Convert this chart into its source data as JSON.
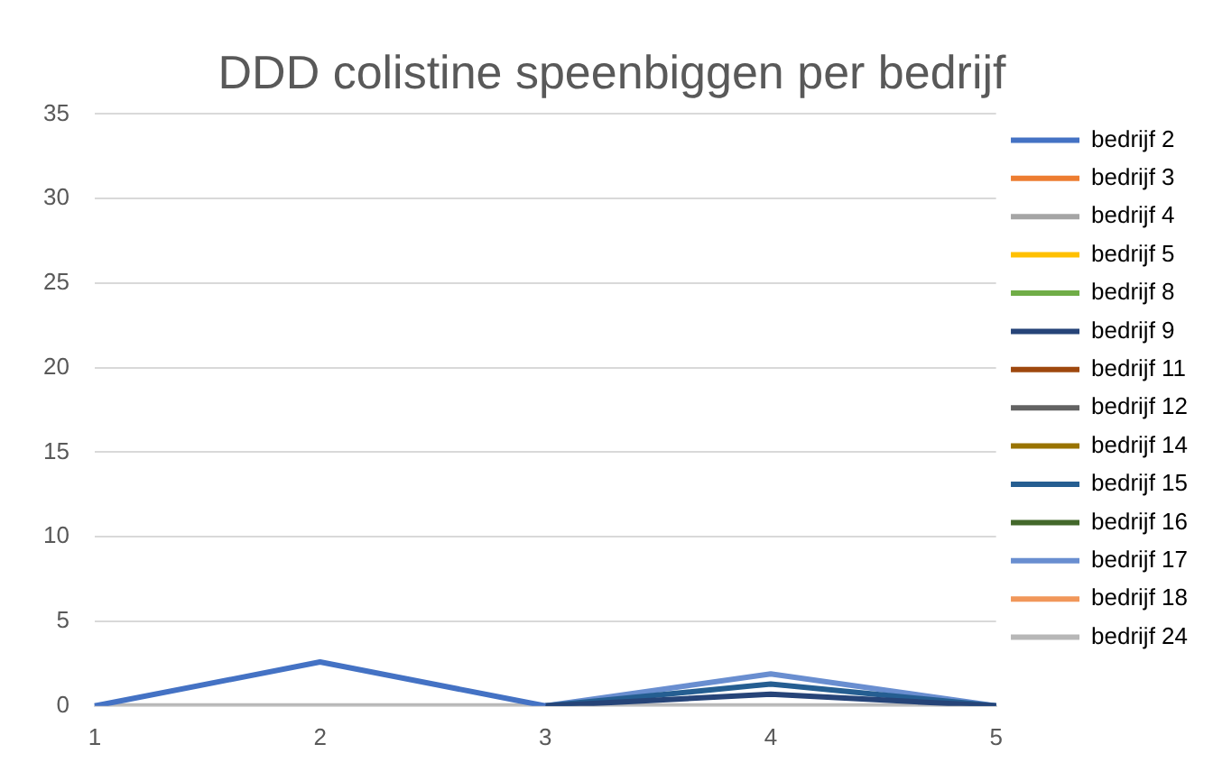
{
  "chart_data": {
    "type": "line",
    "title": "DDD colistine speenbiggen per bedrijf",
    "categories": [
      "1",
      "2",
      "3",
      "4",
      "5"
    ],
    "ylim": [
      0,
      35
    ],
    "yticks": [
      0,
      5,
      10,
      15,
      20,
      25,
      30,
      35
    ],
    "grid": "y",
    "legend": "right",
    "marker": "none",
    "line_style": "solid",
    "series": [
      {
        "name": "bedrijf 2",
        "color": "#4472c4",
        "values": [
          0,
          2.6,
          0,
          null,
          null
        ]
      },
      {
        "name": "bedrijf 3",
        "color": "#ed7d31",
        "values": [
          null,
          null,
          null,
          null,
          null
        ]
      },
      {
        "name": "bedrijf 4",
        "color": "#a5a5a5",
        "values": [
          null,
          null,
          null,
          null,
          null
        ]
      },
      {
        "name": "bedrijf 5",
        "color": "#ffc000",
        "values": [
          null,
          null,
          null,
          null,
          null
        ]
      },
      {
        "name": "bedrijf 8",
        "color": "#70ad47",
        "values": [
          null,
          null,
          null,
          null,
          null
        ]
      },
      {
        "name": "bedrijf 9",
        "color": "#264478",
        "values": [
          null,
          null,
          0,
          0.7,
          0
        ]
      },
      {
        "name": "bedrijf 11",
        "color": "#9e480e",
        "values": [
          null,
          null,
          null,
          null,
          null
        ]
      },
      {
        "name": "bedrijf 12",
        "color": "#636363",
        "values": [
          null,
          null,
          null,
          null,
          null
        ]
      },
      {
        "name": "bedrijf 14",
        "color": "#997300",
        "values": [
          null,
          null,
          null,
          null,
          null
        ]
      },
      {
        "name": "bedrijf 15",
        "color": "#255e91",
        "values": [
          null,
          null,
          0,
          1.3,
          0
        ]
      },
      {
        "name": "bedrijf 16",
        "color": "#43682b",
        "values": [
          null,
          null,
          null,
          null,
          null
        ]
      },
      {
        "name": "bedrijf 17",
        "color": "#698ed0",
        "values": [
          null,
          null,
          0,
          1.9,
          0
        ]
      },
      {
        "name": "bedrijf 18",
        "color": "#f1975a",
        "values": [
          null,
          null,
          null,
          null,
          null
        ]
      },
      {
        "name": "bedrijf 24",
        "color": "#b7b7b7",
        "values": [
          0,
          0,
          0,
          0,
          0
        ]
      }
    ]
  }
}
